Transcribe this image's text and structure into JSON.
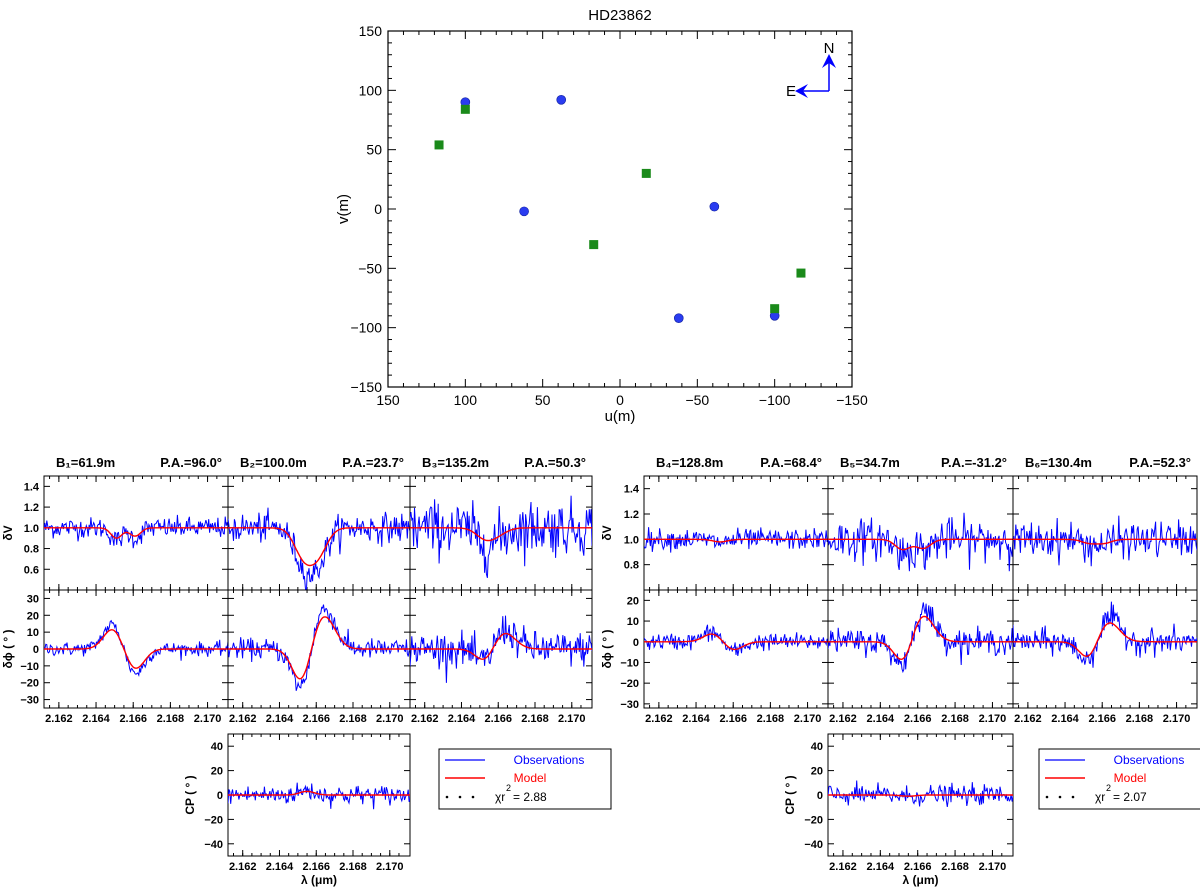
{
  "colors": {
    "observations": "#0000ff",
    "model": "#ff0000",
    "uv_circle": "#2a3cf0",
    "uv_square": "#1a8a1a",
    "compass": "#0000ff"
  },
  "chart_data": [
    {
      "type": "scatter",
      "title": "HD23862",
      "xlabel": "u(m)",
      "ylabel": "v(m)",
      "xlim": [
        150,
        -150
      ],
      "ylim": [
        -150,
        150
      ],
      "xticks": [
        150,
        100,
        50,
        0,
        -50,
        -100,
        -150
      ],
      "xtick_labels": [
        "150",
        "100",
        "50",
        "0",
        "−50",
        "−100",
        "−150"
      ],
      "yticks": [
        -150,
        -100,
        -50,
        0,
        50,
        100,
        150
      ],
      "ytick_labels": [
        "−150",
        "−100",
        "−50",
        "0",
        "50",
        "100",
        "150"
      ],
      "compass": {
        "north": "N",
        "east": "E"
      },
      "series": [
        {
          "marker": "circle",
          "x": [
            100,
            38,
            62,
            -38,
            -61,
            -100
          ],
          "y": [
            90,
            92,
            -2,
            -92,
            2,
            -90
          ]
        },
        {
          "marker": "square",
          "x": [
            117,
            100,
            -17,
            17,
            -100,
            -117
          ],
          "y": [
            54,
            84,
            30,
            -30,
            -84,
            -54
          ]
        }
      ]
    },
    {
      "type": "line",
      "group": "left",
      "baselines": [
        {
          "label": "B₁=61.9m",
          "pa": "P.A.=96.0°"
        },
        {
          "label": "B₂=100.0m",
          "pa": "P.A.=23.7°"
        },
        {
          "label": "B₃=135.2m",
          "pa": "P.A.=50.3°"
        }
      ],
      "xlabel": "λ (μm)",
      "xlim": [
        2.1612,
        2.1711
      ],
      "xticks": [
        2.162,
        2.164,
        2.166,
        2.168,
        2.17
      ],
      "xtick_labels": [
        "2.162",
        "2.164",
        "2.166",
        "2.168",
        "2.170"
      ],
      "dv": {
        "ylabel": "δV",
        "ylim": [
          0.4,
          1.5
        ],
        "yticks": [
          0.6,
          0.8,
          1.0,
          1.2,
          1.4
        ],
        "ytick_labels": [
          "0.6",
          "0.8",
          "1.0",
          "1.2",
          "1.4"
        ]
      },
      "dphi": {
        "ylabel": "δϕ ( ° )",
        "ylim": [
          -35,
          35
        ],
        "yticks": [
          -30,
          -20,
          -10,
          0,
          10,
          20,
          30
        ],
        "ytick_labels": [
          "−30",
          "−20",
          "−10",
          "0",
          "10",
          "20",
          "30"
        ]
      },
      "cp": {
        "ylabel": "CP  ( ° )",
        "ylim": [
          -50,
          50
        ],
        "yticks": [
          -40,
          -20,
          0,
          20,
          40
        ],
        "ytick_labels": [
          "−40",
          "−20",
          "0",
          "20",
          "40"
        ]
      },
      "models": {
        "dv": [
          [
            {
              "c": 2.1651,
              "a": -0.1,
              "w": 0.0003
            },
            {
              "c": 2.1661,
              "a": -0.08,
              "w": 0.0003
            }
          ],
          [
            {
              "c": 2.1653,
              "a": -0.26,
              "w": 0.0005
            },
            {
              "c": 2.1661,
              "a": -0.24,
              "w": 0.0005
            }
          ],
          [
            {
              "c": 2.1653,
              "a": -0.1,
              "w": 0.0005
            },
            {
              "c": 2.166,
              "a": -0.05,
              "w": 0.0005
            }
          ]
        ],
        "dphi": [
          [
            {
              "c": 2.1649,
              "a": 12,
              "w": 0.0005
            },
            {
              "c": 2.1661,
              "a": -12,
              "w": 0.0005
            }
          ],
          [
            {
              "c": 2.1652,
              "a": -20,
              "w": 0.0005
            },
            {
              "c": 2.1664,
              "a": 20,
              "w": 0.0006
            }
          ],
          [
            {
              "c": 2.1653,
              "a": -8,
              "w": 0.0005
            },
            {
              "c": 2.1663,
              "a": 10,
              "w": 0.0006
            }
          ]
        ],
        "cp": [
          {
            "c": 2.1655,
            "a": 3,
            "w": 0.0004
          }
        ]
      },
      "noise": {
        "dv": [
          0.05,
          0.07,
          0.13
        ],
        "dphi": [
          2,
          3,
          5
        ],
        "cp": 4
      },
      "legend": {
        "observations": "Observations",
        "model": "Model",
        "chi_label": "χr",
        "chi_sup": "2",
        "chi_value": "= 2.88"
      }
    },
    {
      "type": "line",
      "group": "right",
      "baselines": [
        {
          "label": "B₄=128.8m",
          "pa": "P.A.=68.4°"
        },
        {
          "label": "B₅=34.7m",
          "pa": "P.A.=-31.2°"
        },
        {
          "label": "B₆=130.4m",
          "pa": "P.A.=52.3°"
        }
      ],
      "xlabel": "λ (μm)",
      "xlim": [
        2.1612,
        2.1711
      ],
      "xticks": [
        2.162,
        2.164,
        2.166,
        2.168,
        2.17
      ],
      "xtick_labels": [
        "2.162",
        "2.164",
        "2.166",
        "2.168",
        "2.170"
      ],
      "dv": {
        "ylabel": "δV",
        "ylim": [
          0.6,
          1.5
        ],
        "yticks": [
          0.8,
          1.0,
          1.2,
          1.4
        ],
        "ytick_labels": [
          "0.8",
          "1.0",
          "1.2",
          "1.4"
        ]
      },
      "dphi": {
        "ylabel": "δϕ ( ° )",
        "ylim": [
          -32,
          25
        ],
        "yticks": [
          -30,
          -20,
          -10,
          0,
          10,
          20
        ],
        "ytick_labels": [
          "−30",
          "−20",
          "−10",
          "0",
          "10",
          "20"
        ]
      },
      "cp": {
        "ylabel": "CP  ( ° )",
        "ylim": [
          -50,
          50
        ],
        "yticks": [
          -40,
          -20,
          0,
          20,
          40
        ],
        "ytick_labels": [
          "−40",
          "−20",
          "0",
          "20",
          "40"
        ]
      },
      "models": {
        "dv": [
          [
            {
              "c": 2.1653,
              "a": -0.02,
              "w": 0.0004
            }
          ],
          [
            {
              "c": 2.1652,
              "a": -0.08,
              "w": 0.0004
            },
            {
              "c": 2.1663,
              "a": -0.07,
              "w": 0.0004
            }
          ],
          [
            {
              "c": 2.1653,
              "a": -0.03,
              "w": 0.0004
            },
            {
              "c": 2.1661,
              "a": -0.03,
              "w": 0.0004
            }
          ]
        ],
        "dphi": [
          [
            {
              "c": 2.1649,
              "a": 4,
              "w": 0.0005
            },
            {
              "c": 2.166,
              "a": -4,
              "w": 0.0005
            }
          ],
          [
            {
              "c": 2.1653,
              "a": -12,
              "w": 0.0005
            },
            {
              "c": 2.1662,
              "a": 14,
              "w": 0.0006
            }
          ],
          [
            {
              "c": 2.1653,
              "a": -9,
              "w": 0.0005
            },
            {
              "c": 2.1663,
              "a": 10,
              "w": 0.0006
            }
          ]
        ],
        "cp": [
          {
            "c": 2.1655,
            "a": -1,
            "w": 0.0004
          }
        ]
      },
      "noise": {
        "dv": [
          0.04,
          0.08,
          0.07
        ],
        "dphi": [
          2,
          3,
          3
        ],
        "cp": 4
      },
      "legend": {
        "observations": "Observations",
        "model": "Model",
        "chi_label": "χr",
        "chi_sup": "2",
        "chi_value": "= 2.07"
      }
    }
  ]
}
